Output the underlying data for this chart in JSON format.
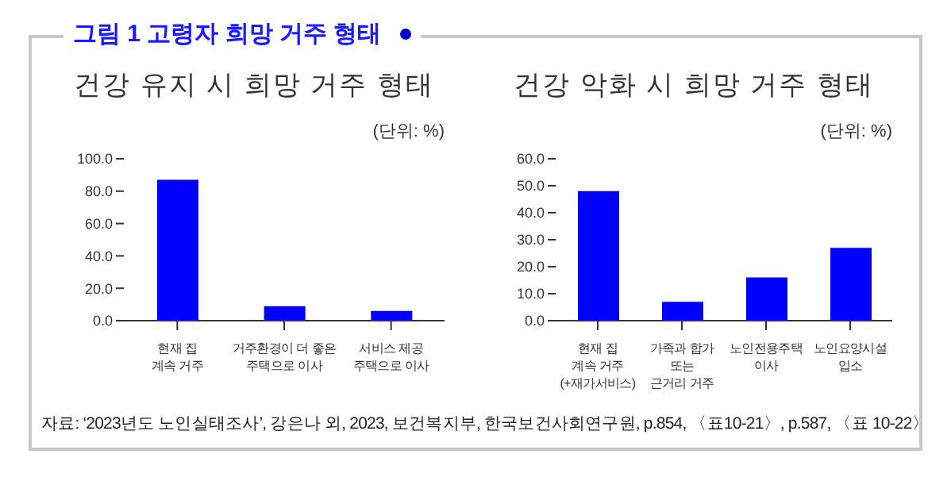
{
  "chart_data": [
    {
      "type": "bar",
      "title": "건강 유지 시 희망 거주 형태",
      "ylabel": "(단위: %)",
      "annotations": [
        "그림 1 고령자 희망 거주 형태"
      ],
      "categories": [
        "현재 집\n계속 거주",
        "거주환경이 더 좋은\n주택으로 이사",
        "서비스 제공\n주택으로 이사"
      ],
      "values": [
        87,
        9,
        6
      ],
      "color": "#0000ff",
      "ylim": [
        0,
        100
      ],
      "yticks": [
        {
          "value": 0,
          "label": "0.0"
        },
        {
          "value": 20,
          "label": "20.0"
        },
        {
          "value": 40,
          "label": "40.0"
        },
        {
          "value": 60,
          "label": "60.0"
        },
        {
          "value": 80,
          "label": "80.0"
        },
        {
          "value": 100,
          "label": "100.0"
        }
      ],
      "grid": false
    },
    {
      "type": "bar",
      "title": "건강 악화 시 희망 거주 형태",
      "ylabel": "(단위: %)",
      "annotations": [
        "자료: ‘2023년도 노인실태조사’, 강은나 외, 2023, 보건복지부, 한국보건사회연구원, p.854, 〈표10-21〉, p.587, 〈표 10-22〉"
      ],
      "categories": [
        "현재 집\n계속 거주\n(+재가서비스)",
        "가족과 합가\n또는\n근거리 거주",
        "노인전용주택\n이사",
        "노인요양시설\n입소"
      ],
      "values": [
        48,
        7,
        16,
        27
      ],
      "color": "#0000ff",
      "ylim": [
        0,
        60
      ],
      "yticks": [
        {
          "value": 0,
          "label": "0.0"
        },
        {
          "value": 10,
          "label": "10.0"
        },
        {
          "value": 20,
          "label": "20.0"
        },
        {
          "value": 30,
          "label": "30.0"
        },
        {
          "value": 40,
          "label": "40.0"
        },
        {
          "value": 50,
          "label": "50.0"
        },
        {
          "value": 60,
          "label": "60.0"
        }
      ],
      "grid": false
    }
  ]
}
